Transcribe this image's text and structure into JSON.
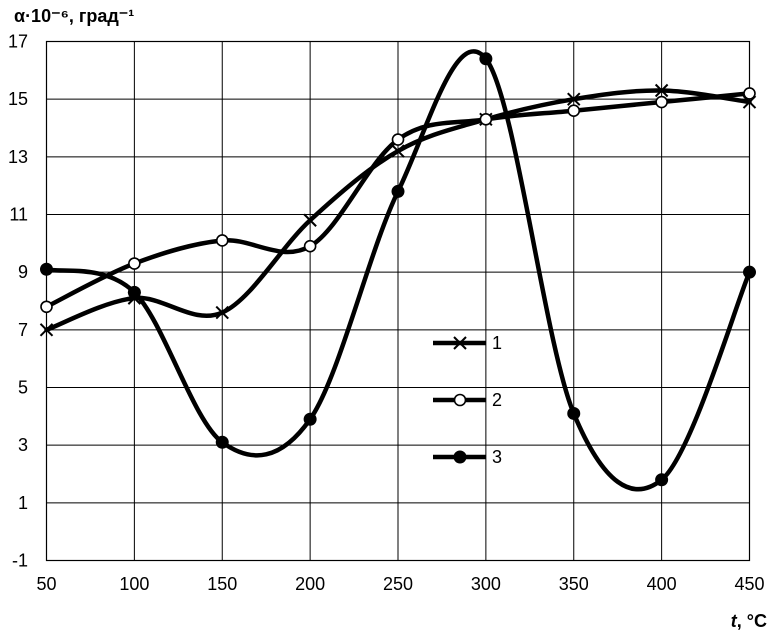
{
  "chart_data": {
    "type": "line",
    "ylabel": "α·10⁻⁶, град⁻¹",
    "xlabel_italic": "t",
    "xlabel_unit": ", °C",
    "x": [
      50,
      100,
      150,
      200,
      250,
      300,
      350,
      400,
      450
    ],
    "xlim": [
      50,
      450
    ],
    "ylim": [
      -1,
      17
    ],
    "x_ticks": [
      "50",
      "100",
      "150",
      "200",
      "250",
      "300",
      "350",
      "400",
      "450"
    ],
    "y_ticks": [
      "-1",
      "1",
      "3",
      "5",
      "7",
      "9",
      "11",
      "13",
      "15",
      "17"
    ],
    "y_tick_values": [
      -1,
      1,
      3,
      5,
      7,
      9,
      11,
      13,
      15,
      17
    ],
    "grid": true,
    "legend_position": "center-right",
    "series": [
      {
        "name": "1",
        "marker": "cross",
        "values": [
          7.0,
          8.1,
          7.6,
          10.8,
          13.2,
          14.3,
          15.0,
          15.3,
          14.9
        ]
      },
      {
        "name": "2",
        "marker": "circle-open",
        "values": [
          7.8,
          9.3,
          10.1,
          9.9,
          13.6,
          14.3,
          14.6,
          14.9,
          15.2
        ]
      },
      {
        "name": "3",
        "marker": "circle-filled",
        "values": [
          9.1,
          8.3,
          3.1,
          3.9,
          11.8,
          16.4,
          4.1,
          1.8,
          9.0
        ]
      }
    ],
    "colors": {
      "line": "#000000",
      "background": "#ffffff"
    }
  }
}
